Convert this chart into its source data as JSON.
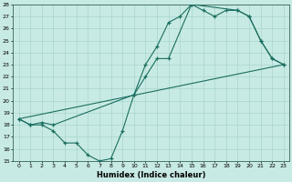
{
  "xlabel": "Humidex (Indice chaleur)",
  "ylabel": "",
  "bg_color": "#c8eae4",
  "line_color": "#1a6e60",
  "xlim": [
    -0.5,
    23.5
  ],
  "ylim": [
    15,
    28
  ],
  "yticks": [
    15,
    16,
    17,
    18,
    19,
    20,
    21,
    22,
    23,
    24,
    25,
    26,
    27,
    28
  ],
  "xticks": [
    0,
    1,
    2,
    3,
    4,
    5,
    6,
    7,
    8,
    9,
    10,
    11,
    12,
    13,
    14,
    15,
    16,
    17,
    18,
    19,
    20,
    21,
    22,
    23
  ],
  "curve1_x": [
    0,
    1,
    2,
    3,
    4,
    5,
    6,
    7,
    8,
    9,
    10,
    11,
    12,
    13,
    14,
    15,
    16,
    17,
    18,
    19,
    20,
    21,
    22,
    23
  ],
  "curve1_y": [
    18.5,
    18.0,
    18.0,
    17.5,
    16.5,
    16.5,
    15.5,
    15.0,
    15.2,
    17.5,
    20.5,
    23.0,
    24.5,
    26.5,
    27.0,
    28.0,
    27.5,
    27.0,
    27.5,
    27.5,
    27.0,
    25.0,
    23.5,
    23.0
  ],
  "curve2_x": [
    0,
    1,
    2,
    3,
    10,
    11,
    12,
    13,
    15,
    19,
    20,
    21,
    22,
    23
  ],
  "curve2_y": [
    18.5,
    18.0,
    18.2,
    18.0,
    20.5,
    22.0,
    23.5,
    23.5,
    28.0,
    27.5,
    27.0,
    25.0,
    23.5,
    23.0
  ],
  "curve3_x": [
    0,
    23
  ],
  "curve3_y": [
    18.5,
    23.0
  ]
}
